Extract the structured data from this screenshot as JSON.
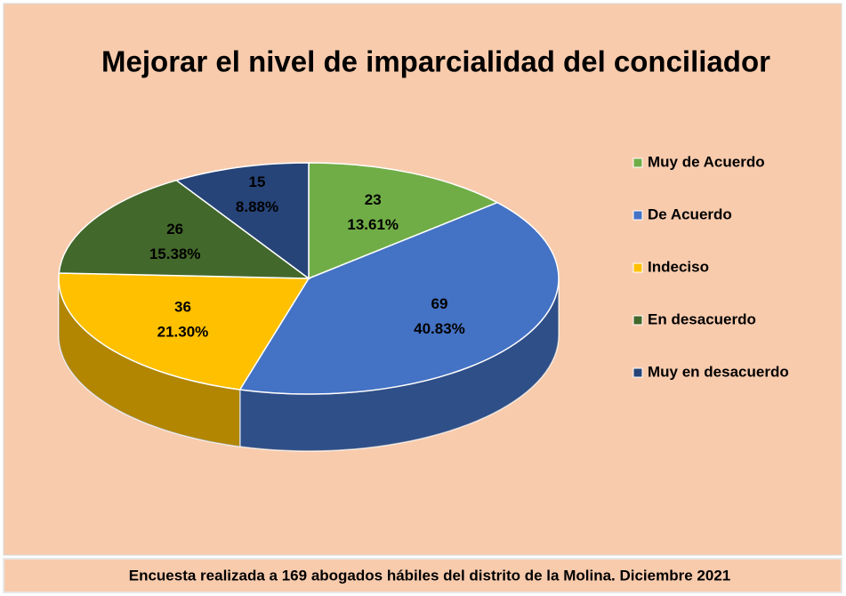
{
  "chart_data": {
    "type": "pie",
    "title": "Mejorar el nivel de imparcialidad del conciliador",
    "categories": [
      "Muy de Acuerdo",
      "De Acuerdo",
      "Indeciso",
      "En desacuerdo",
      "Muy en desacuerdo"
    ],
    "values": [
      23,
      69,
      36,
      26,
      15
    ],
    "percent_labels": [
      "13.61%",
      "40.83%",
      "21.30%",
      "15.38%",
      "8.88%"
    ],
    "colors": [
      "#70ad47",
      "#4472c4",
      "#ffc000",
      "#43682b",
      "#264478"
    ],
    "legend": "right",
    "footnote": "Encuesta realizada a 169 abogados hábiles del distrito de la Molina. Diciembre 2021"
  }
}
